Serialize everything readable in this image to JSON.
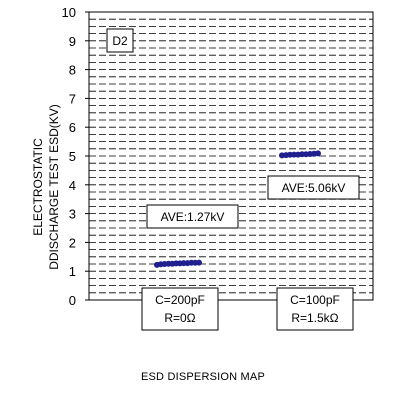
{
  "chart_data": {
    "type": "scatter",
    "title": "",
    "ylabel_line1": "ELECTROSTATIC",
    "ylabel_line2": "DDISCHARGE TEST ESD(KV)",
    "ylim": [
      0,
      10
    ],
    "yticks": [
      "0",
      "1",
      "2",
      "3",
      "4",
      "5",
      "6",
      "7",
      "8",
      "9",
      "10"
    ],
    "panel_label": "D2",
    "grid": "dashed horizontal",
    "groups": [
      {
        "average_label": "AVE:1.27kV",
        "condition_line1": "C=200pF",
        "condition_line2": "R=0Ω",
        "values": [
          1.22,
          1.24,
          1.25,
          1.26,
          1.26,
          1.27,
          1.27,
          1.28,
          1.28,
          1.29,
          1.29,
          1.3
        ]
      },
      {
        "average_label": "AVE:5.06kV",
        "condition_line1": "C=100pF",
        "condition_line2": "R=1.5kΩ",
        "values": [
          5.02,
          5.03,
          5.04,
          5.05,
          5.05,
          5.06,
          5.06,
          5.07,
          5.08,
          5.09
        ]
      }
    ],
    "marker_color": "#1f1f8f"
  },
  "caption": "ESD DISPERSION MAP"
}
